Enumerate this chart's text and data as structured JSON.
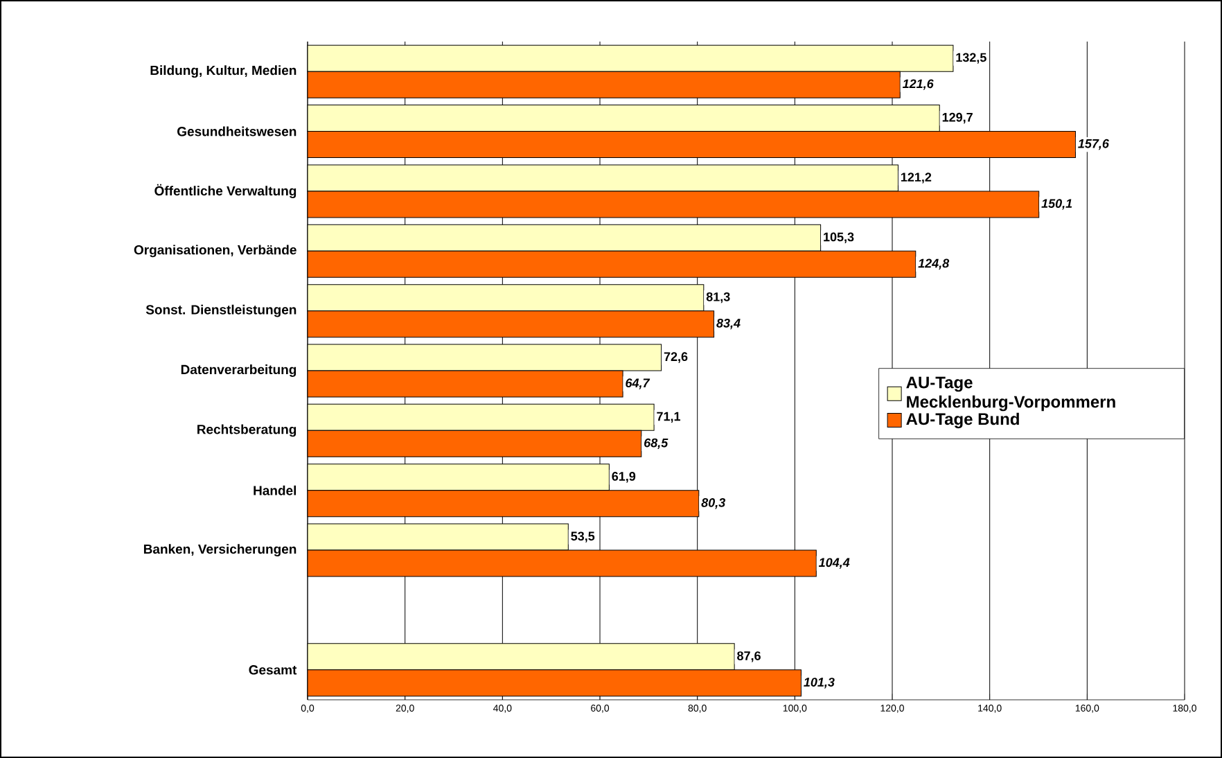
{
  "chart_data": {
    "type": "bar",
    "orientation": "horizontal",
    "categories": [
      "Bildung, Kultur, Medien",
      "Gesundheitswesen",
      "Öffentliche Verwaltung",
      "Organisationen, Verbände",
      "Sonst. Dienstleistungen",
      "Datenverarbeitung",
      "Rechtsberatung",
      "Handel",
      "Banken, Versicherungen",
      null,
      "Gesamt"
    ],
    "series": [
      {
        "name": "AU-Tage Mecklenburg-Vorpommern",
        "color": "#ffffc0",
        "values": [
          132.5,
          129.7,
          121.2,
          105.3,
          81.3,
          72.6,
          71.1,
          61.9,
          53.5,
          null,
          87.6
        ],
        "value_labels": [
          "132,5",
          "129,7",
          "121,2",
          "105,3",
          "81,3",
          "72,6",
          "71,1",
          "61,9",
          "53,5",
          null,
          "87,6"
        ]
      },
      {
        "name": "AU-Tage Bund",
        "color": "#ff6600",
        "values": [
          121.6,
          157.6,
          150.1,
          124.8,
          83.4,
          64.7,
          68.5,
          80.3,
          104.4,
          null,
          101.3
        ],
        "value_labels": [
          "121,6",
          "157,6",
          "150,1",
          "124,8",
          "83,4",
          "64,7",
          "68,5",
          "80,3",
          "104,4",
          null,
          "101,3"
        ]
      }
    ],
    "xlim": [
      0,
      180
    ],
    "xticks": [
      {
        "value": 0,
        "label": "0,0"
      },
      {
        "value": 20,
        "label": "20,0"
      },
      {
        "value": 40,
        "label": "40,0"
      },
      {
        "value": 60,
        "label": "60,0"
      },
      {
        "value": 80,
        "label": "80,0"
      },
      {
        "value": 100,
        "label": "100,0"
      },
      {
        "value": 120,
        "label": "120,0"
      },
      {
        "value": 140,
        "label": "140,0"
      },
      {
        "value": 160,
        "label": "160,0"
      },
      {
        "value": 180,
        "label": "180,0"
      }
    ],
    "grid": "x",
    "legend": "right"
  }
}
